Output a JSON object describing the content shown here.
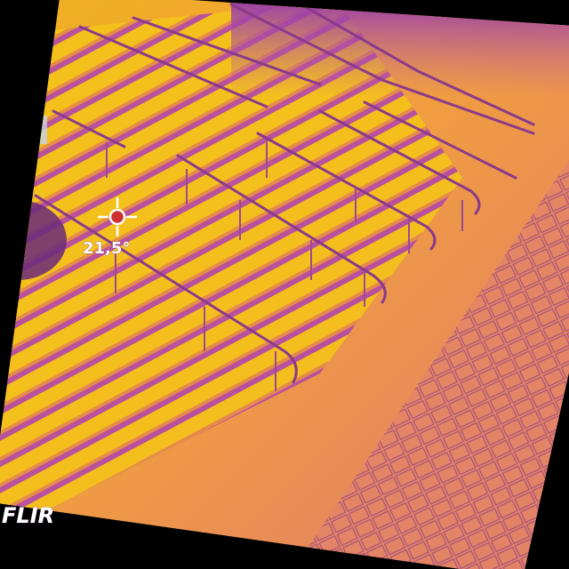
{
  "overlay": {
    "temperature": "21,5°",
    "logo": "FLIR"
  }
}
